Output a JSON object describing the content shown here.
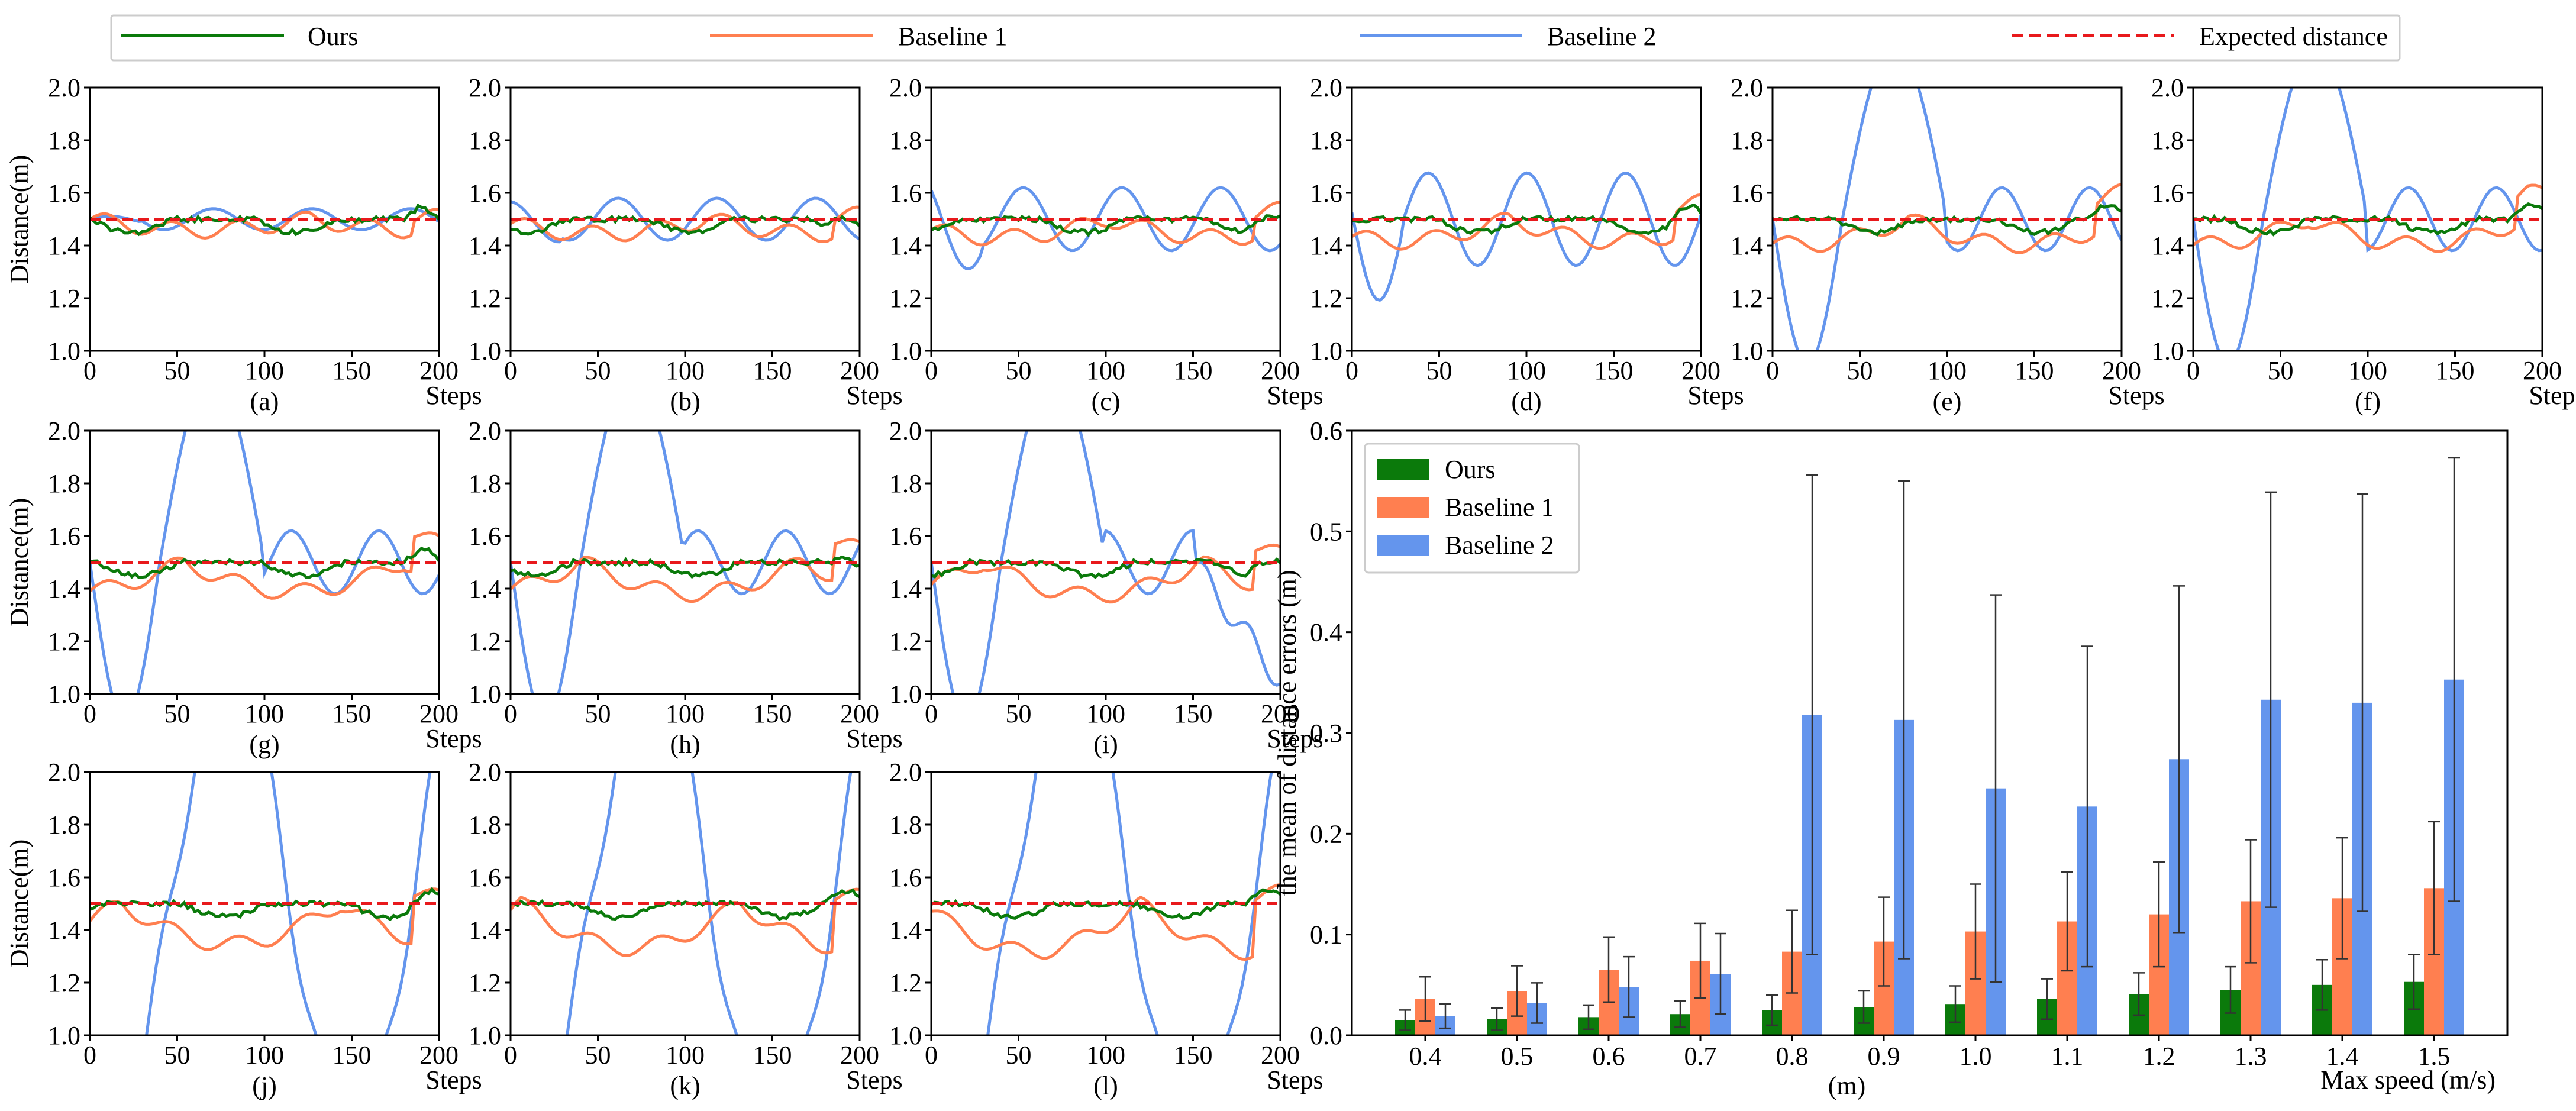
{
  "legend": {
    "items": [
      {
        "label": "Ours",
        "color": "#0b7a0b",
        "style": "solid"
      },
      {
        "label": "Baseline 1",
        "color": "#ff7f50",
        "style": "solid"
      },
      {
        "label": "Baseline 2",
        "color": "#6495ed",
        "style": "solid"
      },
      {
        "label": "Expected distance",
        "color": "#e8191c",
        "style": "dashed"
      }
    ]
  },
  "colors": {
    "ours": "#0b7a0b",
    "b1": "#ff7f50",
    "b2": "#6495ed",
    "expected": "#e8191c"
  },
  "chart_data": [
    {
      "type": "line",
      "panels": [
        {
          "caption": "(a)",
          "b2_amp": 0.05,
          "b2_shape": "small",
          "b1_amp": 0.06
        },
        {
          "caption": "(b)",
          "b2_amp": 0.1,
          "b2_shape": "small",
          "b1_amp": 0.08
        },
        {
          "caption": "(c)",
          "b2_amp": 0.15,
          "b2_shape": "medium",
          "b1_amp": 0.1
        },
        {
          "caption": "(d)",
          "b2_amp": 0.22,
          "b2_shape": "medium",
          "b1_amp": 0.12
        },
        {
          "caption": "(e)",
          "b2_amp": 0.55,
          "b2_shape": "large",
          "b1_amp": 0.14
        },
        {
          "caption": "(f)",
          "b2_amp": 0.55,
          "b2_shape": "large",
          "b1_amp": 0.14
        },
        {
          "caption": "(g)",
          "b2_amp": 0.6,
          "b2_shape": "large",
          "b1_amp": 0.16
        },
        {
          "caption": "(h)",
          "b2_amp": 0.6,
          "b2_shape": "large",
          "b1_amp": 0.17
        },
        {
          "caption": "(i)",
          "b2_amp": 0.6,
          "b2_shape": "large_end_low",
          "b1_amp": 0.18
        },
        {
          "caption": "(j)",
          "b2_amp": 0.9,
          "b2_shape": "wild",
          "b1_amp": 0.22
        },
        {
          "caption": "(k)",
          "b2_amp": 0.9,
          "b2_shape": "wild",
          "b1_amp": 0.24
        },
        {
          "caption": "(l)",
          "b2_amp": 0.9,
          "b2_shape": "wild",
          "b1_amp": 0.26
        }
      ],
      "ylabel": "Distance(m)",
      "xlabel": "Steps",
      "xlim": [
        0,
        200
      ],
      "ylim": [
        1.0,
        2.0
      ],
      "xticks": [
        "0",
        "50",
        "100",
        "150",
        "200"
      ],
      "yticks": [
        "1.0",
        "1.2",
        "1.4",
        "1.6",
        "1.8",
        "2.0"
      ],
      "expected": 1.5
    },
    {
      "type": "bar",
      "caption": "(m)",
      "xlabel": "Max speed (m/s)",
      "ylabel": "the mean of distance errors (m)",
      "categories": [
        "0.4",
        "0.5",
        "0.6",
        "0.7",
        "0.8",
        "0.9",
        "1.0",
        "1.1",
        "1.2",
        "1.3",
        "1.4",
        "1.5"
      ],
      "ylim": [
        0,
        0.6
      ],
      "yticks": [
        "0.0",
        "0.1",
        "0.2",
        "0.3",
        "0.4",
        "0.5",
        "0.6"
      ],
      "legend_position": "top-left",
      "series": [
        {
          "name": "Ours",
          "values": [
            0.015,
            0.016,
            0.018,
            0.021,
            0.025,
            0.028,
            0.031,
            0.036,
            0.041,
            0.045,
            0.05,
            0.053
          ],
          "err": [
            0.01,
            0.011,
            0.012,
            0.013,
            0.015,
            0.016,
            0.018,
            0.02,
            0.021,
            0.023,
            0.025,
            0.027
          ]
        },
        {
          "name": "Baseline 1",
          "values": [
            0.036,
            0.044,
            0.065,
            0.074,
            0.083,
            0.093,
            0.103,
            0.113,
            0.12,
            0.133,
            0.136,
            0.146
          ],
          "err": [
            0.022,
            0.025,
            0.032,
            0.037,
            0.041,
            0.044,
            0.047,
            0.049,
            0.052,
            0.061,
            0.06,
            0.066
          ]
        },
        {
          "name": "Baseline 2",
          "values": [
            0.019,
            0.032,
            0.048,
            0.061,
            0.318,
            0.313,
            0.245,
            0.227,
            0.274,
            0.333,
            0.33,
            0.353
          ],
          "err": [
            0.012,
            0.02,
            0.03,
            0.04,
            0.238,
            0.237,
            0.192,
            0.159,
            0.172,
            0.206,
            0.207,
            0.22
          ]
        }
      ]
    }
  ]
}
